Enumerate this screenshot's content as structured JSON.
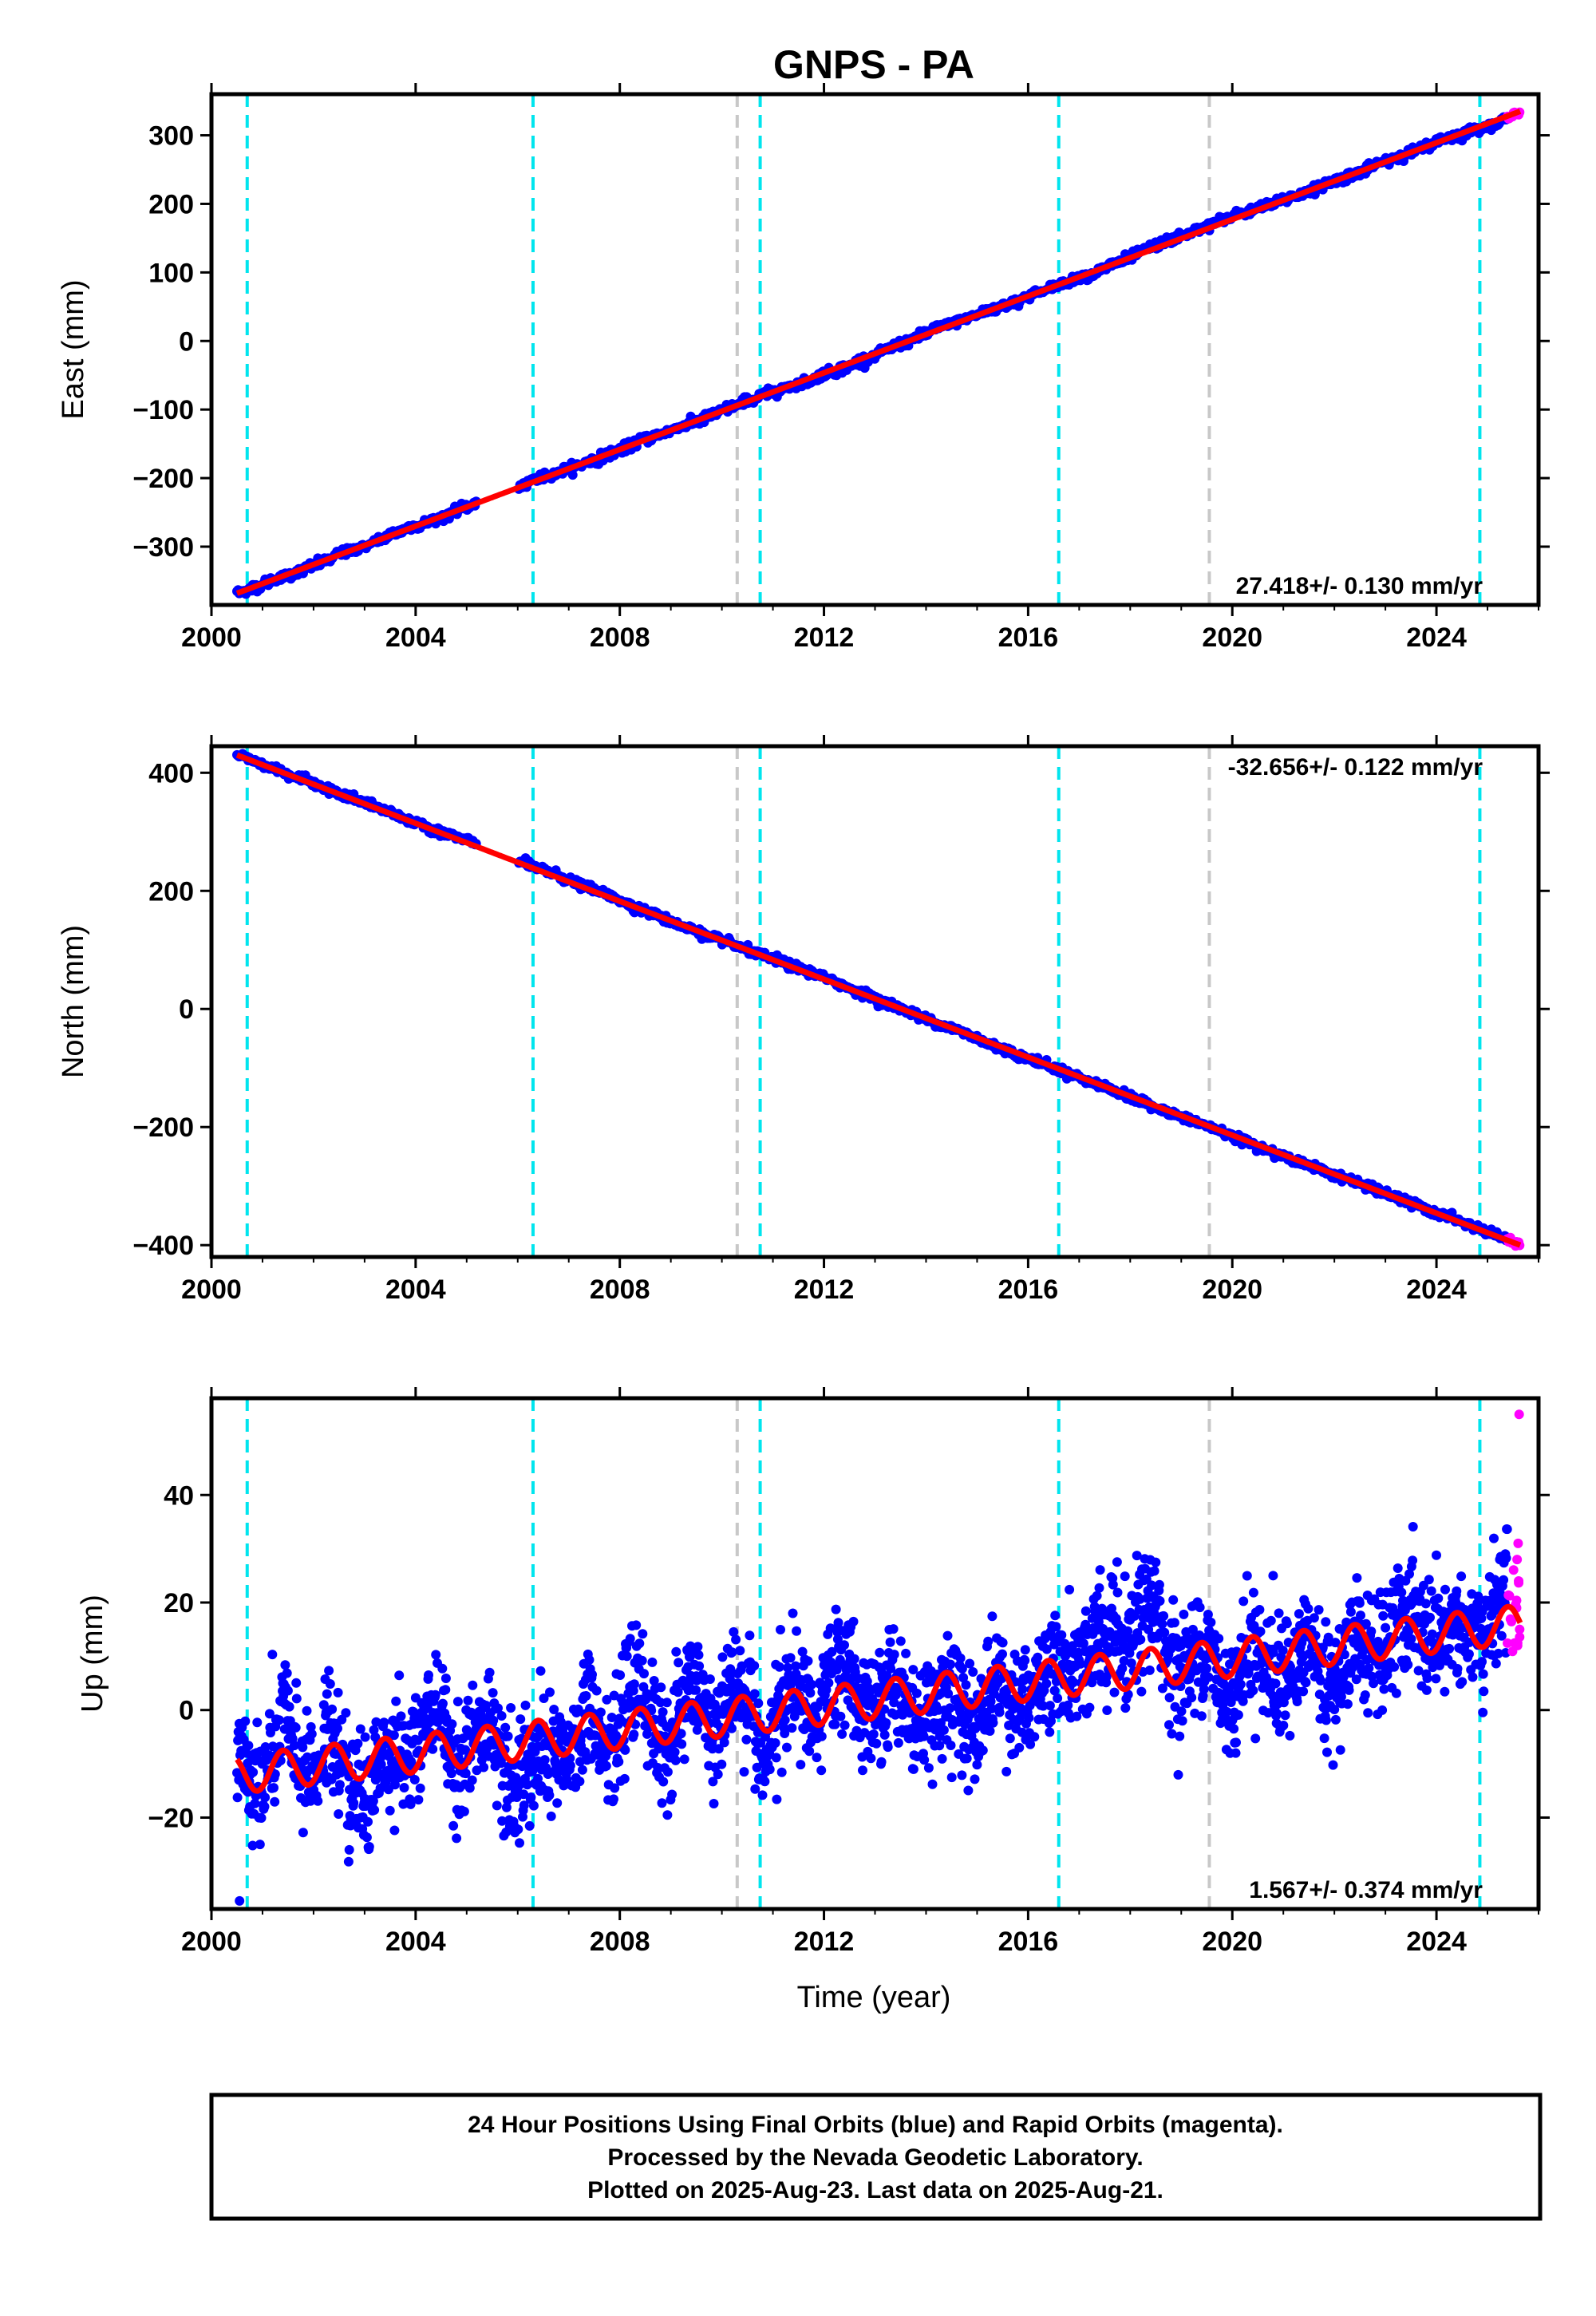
{
  "title": "GNPS - PA",
  "xlabel": "Time (year)",
  "x_ticks": [
    "2000",
    "2004",
    "2008",
    "2012",
    "2016",
    "2020",
    "2024"
  ],
  "footer": {
    "line1": "24 Hour Positions Using Final Orbits (blue) and Rapid Orbits (magenta).",
    "line2": "Processed by the Nevada Geodetic Laboratory.",
    "line3": "Plotted on 2025-Aug-23. Last data on 2025-Aug-21."
  },
  "colors": {
    "final_orbits": "#0000ff",
    "rapid_orbits": "#ff00ff",
    "model_fit": "#ff0000",
    "event_cyan": "#00e5ee",
    "event_gray": "#c8c8c8"
  },
  "chart_data": [
    {
      "type": "scatter",
      "component": "east",
      "ylabel": "East (mm)",
      "rate": "27.418+/- 0.130 mm/yr",
      "xlim": [
        2000.0,
        2026.0
      ],
      "ylim": [
        -385,
        360
      ],
      "y_ticks": [
        "300",
        "200",
        "100",
        "0",
        "−100",
        "−200",
        "−300"
      ],
      "rate_mm_per_yr": 27.418,
      "x_start": 2000.5,
      "x_end": 2025.64,
      "y_start": -368,
      "y_end": 335,
      "cyan_lines": [
        2000.7,
        2006.3,
        2010.75,
        2016.6,
        2024.85
      ],
      "gray_lines": [
        2010.3,
        2019.55
      ],
      "x_ticks_values": [
        2000,
        2004,
        2008,
        2012,
        2016,
        2020,
        2024
      ],
      "y_ticks_values": [
        300,
        200,
        100,
        0,
        -100,
        -200,
        -300
      ]
    },
    {
      "type": "scatter",
      "component": "north",
      "ylabel": "North (mm)",
      "rate": "-32.656+/- 0.122 mm/yr",
      "xlim": [
        2000.0,
        2026.0
      ],
      "ylim": [
        -420,
        445
      ],
      "y_ticks": [
        "400",
        "200",
        "0",
        "−200",
        "−400"
      ],
      "rate_mm_per_yr": -32.656,
      "x_start": 2000.5,
      "x_end": 2025.64,
      "y_start": 430,
      "y_end": -400,
      "cyan_lines": [
        2000.7,
        2006.3,
        2010.75,
        2016.6,
        2024.85
      ],
      "gray_lines": [
        2010.3,
        2019.55
      ],
      "x_ticks_values": [
        2000,
        2004,
        2008,
        2012,
        2016,
        2020,
        2024
      ],
      "y_ticks_values": [
        400,
        200,
        0,
        -200,
        -400
      ]
    },
    {
      "type": "scatter",
      "component": "up",
      "ylabel": "Up (mm)",
      "rate": "1.567+/- 0.374 mm/yr",
      "xlim": [
        2000.0,
        2026.0
      ],
      "ylim": [
        -37,
        58
      ],
      "y_ticks": [
        "40",
        "20",
        "0",
        "−20"
      ],
      "rate_mm_per_yr": 1.567,
      "x_start": 2000.5,
      "x_end": 2025.64,
      "y_start": -12,
      "y_end": 16,
      "seasonal_amplitude_mm": 3.5,
      "cyan_lines": [
        2000.7,
        2006.3,
        2010.75,
        2016.6,
        2024.85
      ],
      "gray_lines": [
        2010.3,
        2019.55
      ],
      "x_ticks_values": [
        2000,
        2004,
        2008,
        2012,
        2016,
        2020,
        2024
      ],
      "y_ticks_values": [
        40,
        20,
        0,
        -20
      ],
      "outliers": [
        [
          2000.55,
          -35.5
        ],
        [
          2020.8,
          25
        ],
        [
          2002.7,
          -26
        ]
      ],
      "rapid_points": [
        [
          2025.62,
          55
        ],
        [
          2025.6,
          31
        ],
        [
          2025.58,
          28
        ],
        [
          2025.61,
          24
        ],
        [
          2025.57,
          19
        ],
        [
          2025.63,
          15
        ],
        [
          2025.59,
          12
        ]
      ]
    }
  ]
}
